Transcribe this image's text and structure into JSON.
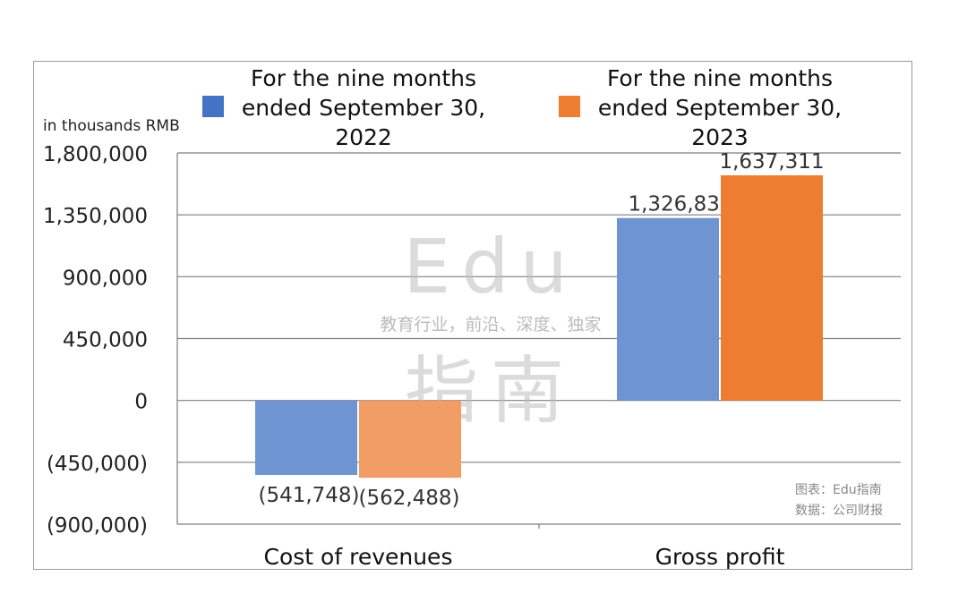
{
  "chart_data": {
    "type": "bar",
    "ylabel": "in thousands RMB",
    "categories": [
      "Cost of revenues",
      "Gross profit"
    ],
    "series": [
      {
        "name": "For the nine months ended September 30, 2022",
        "name_lines": [
          "For the nine months",
          "ended September 30,",
          "2022"
        ],
        "values": [
          -541748,
          1326835
        ],
        "value_labels": [
          "(541,748)",
          "1,326,835"
        ],
        "color": "#6f94d2",
        "legend_color": "#4472c4"
      },
      {
        "name": "For the nine months ended September 30, 2023",
        "name_lines": [
          "For the nine months",
          "ended September 30,",
          "2023"
        ],
        "values": [
          -562488,
          1637311
        ],
        "value_labels": [
          "(562,488)",
          "1,637,311"
        ],
        "colors": [
          "#f29c66",
          "#ed7d31"
        ],
        "legend_color": "#ed7d31"
      }
    ],
    "ylim": [
      -900000,
      1800000
    ],
    "yticks": [
      1800000,
      1350000,
      900000,
      450000,
      0,
      -450000,
      -900000
    ],
    "ytick_labels": [
      "1,800,000",
      "1,350,000",
      "900,000",
      "450,000",
      "0",
      "(450,000)",
      "(900,000)"
    ],
    "grid": true,
    "legend_position": "top"
  },
  "watermark": {
    "logo": "Edu",
    "tagline": "教育行业，前沿、深度、独家",
    "brand": "指南"
  },
  "credits": {
    "chart_by": "图表：Edu指南",
    "data_source": "数据：公司财报"
  }
}
